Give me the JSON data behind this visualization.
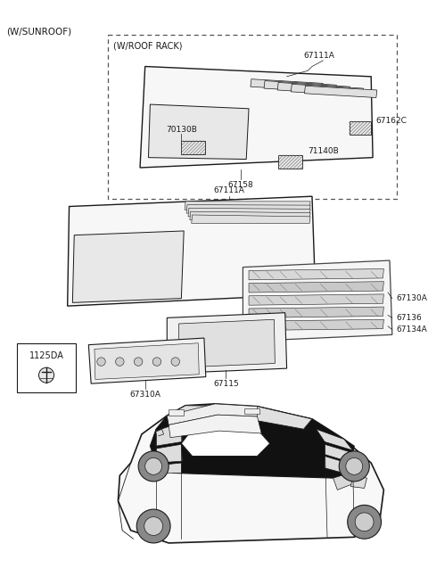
{
  "bg_color": "#ffffff",
  "dark": "#1a1a1a",
  "gray": "#666666",
  "lgray": "#cccccc",
  "labels": {
    "w_sunroof": "(W/SUNROOF)",
    "w_roof_rack": "(W/ROOF RACK)",
    "p70130B": "70130B",
    "p67111A": "67111A",
    "p67162C": "67162C",
    "p71140B": "71140B",
    "p67158": "67158",
    "p67111A_2": "67111A",
    "p67130A": "67130A",
    "p67136": "67136",
    "p67134A": "67134A",
    "p67115": "67115",
    "p67310A": "67310A",
    "p1125DA": "1125DA"
  },
  "figsize": [
    4.8,
    6.56
  ],
  "dpi": 100
}
